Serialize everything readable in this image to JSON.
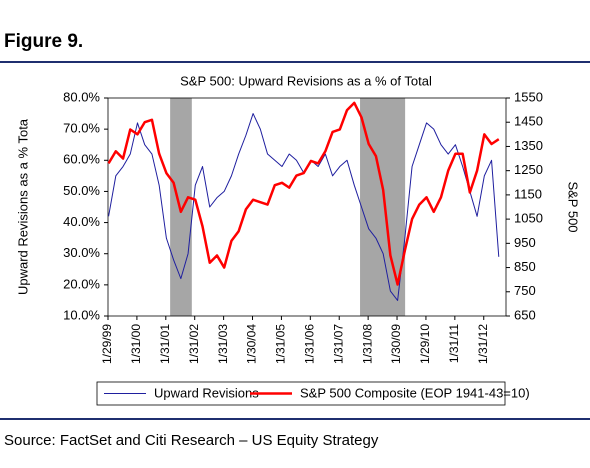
{
  "chart_data": {
    "type": "line",
    "figure_label": "Figure 9.",
    "title": "S&P 500:  Upward Revisions as a % of Total",
    "y_label": "Upward Revisions as a % Tota",
    "y2_label": "S&P 500",
    "source": "Source: FactSet and Citi Research – US Equity Strategy",
    "x": [
      1999.1,
      1999.35,
      1999.6,
      1999.85,
      2000.1,
      2000.35,
      2000.6,
      2000.85,
      2001.1,
      2001.35,
      2001.6,
      2001.85,
      2002.1,
      2002.35,
      2002.6,
      2002.85,
      2003.1,
      2003.35,
      2003.6,
      2003.85,
      2004.1,
      2004.35,
      2004.6,
      2004.85,
      2005.1,
      2005.35,
      2005.6,
      2005.85,
      2006.1,
      2006.35,
      2006.6,
      2006.85,
      2007.1,
      2007.35,
      2007.6,
      2007.85,
      2008.1,
      2008.35,
      2008.6,
      2008.85,
      2009.1,
      2009.35,
      2009.6,
      2009.85,
      2010.1,
      2010.35,
      2010.6,
      2010.85,
      2011.1,
      2011.35,
      2011.6,
      2011.85,
      2012.1,
      2012.35,
      2012.6
    ],
    "series": [
      {
        "name": "Upward Revisions",
        "color": "#1f1f9f",
        "width": 1,
        "values": [
          42,
          55,
          58,
          62,
          72,
          65,
          62,
          52,
          35,
          28,
          22,
          30,
          52,
          58,
          45,
          48,
          50,
          55,
          62,
          68,
          75,
          70,
          62,
          60,
          58,
          62,
          60,
          56,
          60,
          58,
          62,
          55,
          58,
          60,
          52,
          45,
          38,
          35,
          30,
          18,
          15,
          35,
          58,
          65,
          72,
          70,
          65,
          62,
          65,
          58,
          50,
          42,
          55,
          60,
          29
        ]
      },
      {
        "name": "S&P 500 Composite (EOP 1941-43=10)",
        "color": "#ff0000",
        "width": 2.5,
        "axis": "y2",
        "values": [
          1280,
          1330,
          1300,
          1420,
          1400,
          1450,
          1460,
          1320,
          1240,
          1200,
          1080,
          1140,
          1130,
          1020,
          870,
          900,
          850,
          960,
          1000,
          1090,
          1130,
          1120,
          1110,
          1190,
          1200,
          1180,
          1230,
          1240,
          1290,
          1280,
          1330,
          1410,
          1420,
          1500,
          1530,
          1470,
          1360,
          1310,
          1170,
          900,
          780,
          920,
          1050,
          1110,
          1140,
          1080,
          1140,
          1250,
          1320,
          1320,
          1160,
          1250,
          1400,
          1360,
          1380
        ]
      }
    ],
    "xlim": [
      1999.08,
      2012.85
    ],
    "xticks": [
      {
        "value": 1999.08,
        "label": "1/29/99"
      },
      {
        "value": 2000.08,
        "label": "1/31/00"
      },
      {
        "value": 2001.08,
        "label": "1/31/01"
      },
      {
        "value": 2002.08,
        "label": "1/31/02"
      },
      {
        "value": 2003.08,
        "label": "1/31/03"
      },
      {
        "value": 2004.08,
        "label": "1/30/04"
      },
      {
        "value": 2005.08,
        "label": "1/31/05"
      },
      {
        "value": 2006.08,
        "label": "1/31/06"
      },
      {
        "value": 2007.08,
        "label": "1/31/07"
      },
      {
        "value": 2008.08,
        "label": "1/31/08"
      },
      {
        "value": 2009.08,
        "label": "1/30/09"
      },
      {
        "value": 2010.08,
        "label": "1/29/10"
      },
      {
        "value": 2011.08,
        "label": "1/31/11"
      },
      {
        "value": 2012.08,
        "label": "1/31/12"
      }
    ],
    "ylim": [
      10,
      80
    ],
    "yticks": [
      {
        "value": 10,
        "label": "10.0%"
      },
      {
        "value": 20,
        "label": "20.0%"
      },
      {
        "value": 30,
        "label": "30.0%"
      },
      {
        "value": 40,
        "label": "40.0%"
      },
      {
        "value": 50,
        "label": "50.0%"
      },
      {
        "value": 60,
        "label": "60.0%"
      },
      {
        "value": 70,
        "label": "70.0%"
      },
      {
        "value": 80,
        "label": "80.0%"
      }
    ],
    "y2lim": [
      650,
      1550
    ],
    "y2ticks": [
      650,
      750,
      850,
      950,
      1050,
      1150,
      1250,
      1350,
      1450,
      1550
    ],
    "shaded_x": [
      [
        2001.23,
        2001.98
      ],
      [
        2007.8,
        2009.36
      ]
    ],
    "shade_color": "#a6a6a6",
    "grid": false
  }
}
